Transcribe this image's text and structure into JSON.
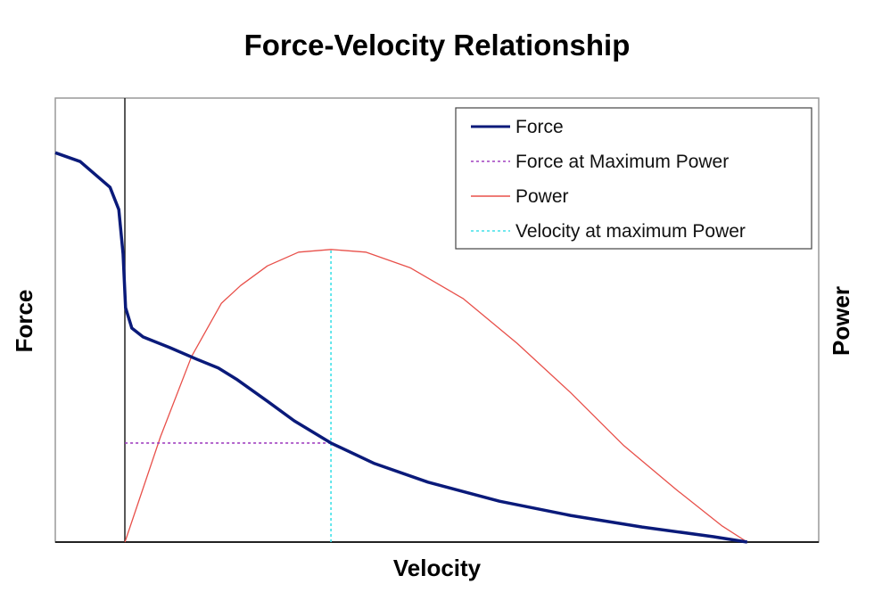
{
  "chart_data": {
    "type": "line",
    "title": "Force-Velocity Relationship",
    "xlabel": "Velocity",
    "ylabel": "Force",
    "y2label": "Power",
    "xlim": [
      -0.112,
      1.115
    ],
    "ylim": [
      0,
      1
    ],
    "y2lim": [
      0,
      1
    ],
    "grid": false,
    "legend_position": "top-right",
    "series": [
      {
        "name": "Force",
        "color": "#0a1a7a",
        "axis": "left",
        "x": [
          -0.112,
          -0.072,
          -0.024,
          -0.01,
          -0.003,
          0.001,
          0.011,
          0.029,
          0.072,
          0.115,
          0.15,
          0.179,
          0.229,
          0.272,
          0.331,
          0.401,
          0.487,
          0.602,
          0.716,
          0.831,
          0.946,
          1.0
        ],
        "y": [
          0.877,
          0.857,
          0.799,
          0.749,
          0.649,
          0.528,
          0.482,
          0.462,
          0.438,
          0.412,
          0.392,
          0.367,
          0.317,
          0.273,
          0.223,
          0.177,
          0.135,
          0.092,
          0.06,
          0.034,
          0.012,
          0.0
        ]
      },
      {
        "name": "Force at Maximum Power",
        "color": "#a040c0",
        "style": "dotted",
        "axis": "left",
        "x": [
          0,
          0.331
        ],
        "y": [
          0.223,
          0.223
        ]
      },
      {
        "name": "Power",
        "color": "#e8504a",
        "axis": "right",
        "x": [
          0,
          0.057,
          0.107,
          0.155,
          0.186,
          0.229,
          0.279,
          0.331,
          0.387,
          0.458,
          0.544,
          0.63,
          0.716,
          0.802,
          0.888,
          0.96,
          1.0
        ],
        "y": [
          0,
          0.237,
          0.418,
          0.538,
          0.578,
          0.622,
          0.653,
          0.659,
          0.653,
          0.618,
          0.548,
          0.448,
          0.337,
          0.217,
          0.116,
          0.036,
          0
        ]
      },
      {
        "name": "Velocity at maximum Power",
        "color": "#40e0e8",
        "style": "dotted",
        "axis": "left",
        "x": [
          0.331,
          0.331
        ],
        "y": [
          0,
          0.659
        ]
      }
    ]
  }
}
